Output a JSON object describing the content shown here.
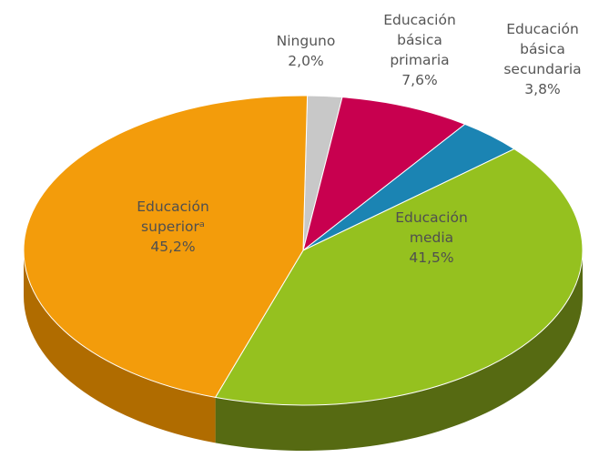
{
  "chart_data": {
    "type": "pie",
    "style": "3d",
    "title": "",
    "slices": [
      {
        "label_lines": [
          "Ninguno"
        ],
        "value": 2.0,
        "value_label": "2,0%",
        "color": "#c8c8c8",
        "side_color": "#9a9a9a"
      },
      {
        "label_lines": [
          "Educación",
          "básica",
          "primaria"
        ],
        "value": 7.6,
        "value_label": "7,6%",
        "color": "#c8004f",
        "side_color": "#8a0036"
      },
      {
        "label_lines": [
          "Educación",
          "básica",
          "secundaria"
        ],
        "value": 3.8,
        "value_label": "3,8%",
        "color": "#1b84b3",
        "side_color": "#125c7e"
      },
      {
        "label_lines": [
          "Educación",
          "media"
        ],
        "value": 41.5,
        "value_label": "41,5%",
        "color": "#95c11f",
        "side_color": "#566a12"
      },
      {
        "label_lines": [
          "Educación",
          "superiorᵃ"
        ],
        "value": 45.2,
        "value_label": "45,2%",
        "color": "#f39c0b",
        "side_color": "#b06c00"
      }
    ],
    "label_color": "#555555",
    "inside_label_color": "#4f4f4f"
  }
}
